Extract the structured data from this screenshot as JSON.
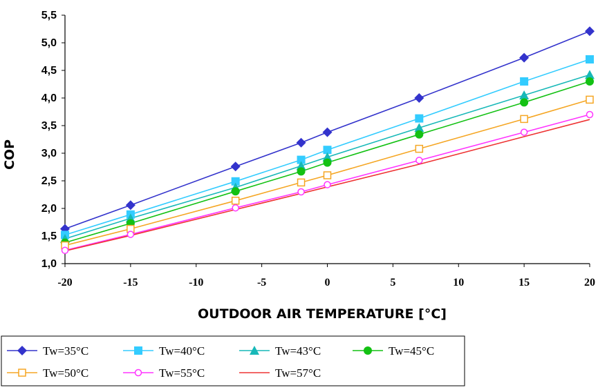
{
  "chart_data": {
    "type": "line",
    "title": "",
    "xlabel": "OUTDOOR AIR TEMPERATURE [°C]",
    "ylabel": "COP",
    "xlim": [
      -20,
      20
    ],
    "ylim": [
      1.0,
      5.5
    ],
    "x_ticks": [
      "-20",
      "-15",
      "-10",
      "-5",
      "0",
      "5",
      "10",
      "15",
      "20"
    ],
    "y_ticks": [
      "1,0",
      "1,5",
      "2,0",
      "2,5",
      "3,0",
      "3,5",
      "4,0",
      "4,5",
      "5,0",
      "5,5"
    ],
    "grid": false,
    "legend_position": "bottom-left",
    "x": [
      -20,
      -15,
      -7,
      -2,
      0,
      7,
      15,
      20
    ],
    "series": [
      {
        "name": "Tw=35°C",
        "color": "#3333cc",
        "marker": "diamond-filled",
        "values": [
          1.63,
          2.06,
          2.76,
          3.19,
          3.38,
          4.0,
          4.73,
          5.21
        ]
      },
      {
        "name": "Tw=40°C",
        "color": "#33ccff",
        "marker": "square-filled",
        "values": [
          1.52,
          1.89,
          2.49,
          2.88,
          3.06,
          3.63,
          4.3,
          4.7
        ]
      },
      {
        "name": "Tw=43°C",
        "color": "#17b8b8",
        "marker": "triangle-filled",
        "values": [
          1.45,
          1.82,
          2.38,
          2.77,
          2.93,
          3.46,
          4.05,
          4.42
        ]
      },
      {
        "name": "Tw=45°C",
        "color": "#13c113",
        "marker": "circle-filled",
        "values": [
          1.38,
          1.73,
          2.31,
          2.67,
          2.83,
          3.34,
          3.92,
          4.3
        ]
      },
      {
        "name": "Tw=50°C",
        "color": "#f5a623",
        "marker": "square-open",
        "values": [
          1.33,
          1.63,
          2.14,
          2.47,
          2.6,
          3.08,
          3.62,
          3.97
        ]
      },
      {
        "name": "Tw=55°C",
        "color": "#ff33ff",
        "marker": "circle-open",
        "values": [
          1.24,
          1.53,
          2.01,
          2.3,
          2.43,
          2.87,
          3.38,
          3.7
        ]
      },
      {
        "name": "Tw=57°C",
        "color": "#ee3333",
        "marker": "none",
        "values": [
          1.23,
          1.51,
          1.98,
          2.27,
          2.39,
          2.8,
          3.3,
          3.61
        ]
      }
    ]
  }
}
